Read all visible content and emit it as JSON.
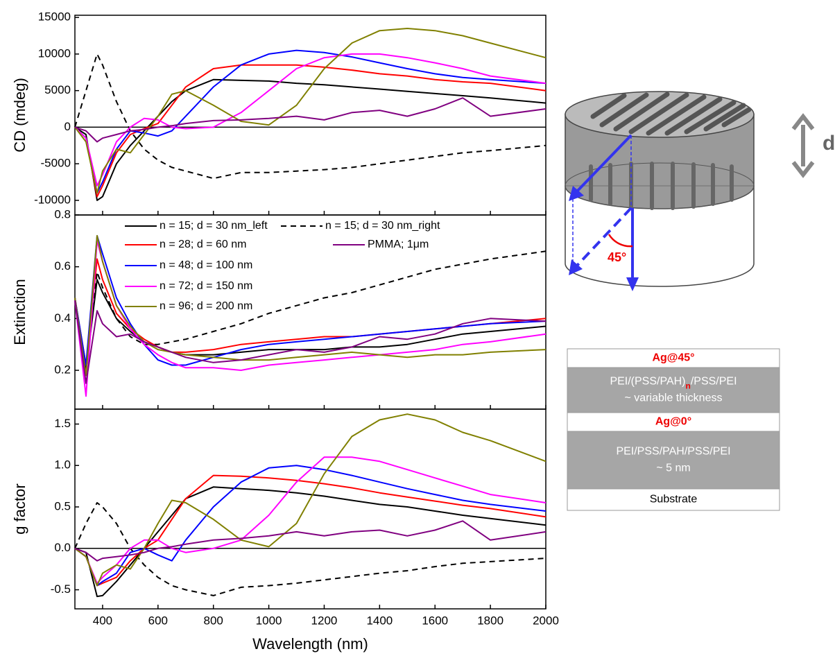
{
  "chart_data": [
    {
      "type": "line",
      "ylabel": "CD (mdeg)",
      "xlim": [
        300,
        2000
      ],
      "ylim": [
        -12000,
        15300
      ],
      "yticks": [
        -10000,
        -5000,
        0,
        5000,
        10000,
        15000
      ],
      "zero_line": true,
      "x": [
        300,
        340,
        380,
        400,
        450,
        500,
        550,
        600,
        650,
        700,
        800,
        900,
        1000,
        1100,
        1200,
        1300,
        1400,
        1500,
        1600,
        1700,
        1800,
        2000
      ],
      "series": [
        {
          "color": "#000000",
          "values": [
            0,
            -1000,
            -10000,
            -9500,
            -5000,
            -2500,
            -500,
            1500,
            3500,
            5000,
            6500,
            6400,
            6300,
            6000,
            5800,
            5500,
            5200,
            4900,
            4600,
            4300,
            4000,
            3300
          ]
        },
        {
          "color": "#000000",
          "dash": true,
          "values": [
            0,
            5000,
            10000,
            8500,
            3500,
            -500,
            -3000,
            -4500,
            -5500,
            -6000,
            -7000,
            -6200,
            -6200,
            -6000,
            -5800,
            -5500,
            -5000,
            -4500,
            -4000,
            -3500,
            -3200,
            -2500
          ]
        },
        {
          "color": "#ff0000",
          "values": [
            0,
            -1500,
            -9500,
            -8000,
            -3500,
            -1000,
            -200,
            500,
            3000,
            5500,
            8000,
            8500,
            8500,
            8500,
            8200,
            7800,
            7300,
            7000,
            6500,
            6200,
            6000,
            5000
          ]
        },
        {
          "color": "#0000ff",
          "values": [
            0,
            -1500,
            -9000,
            -7500,
            -3000,
            -500,
            -800,
            -1200,
            -500,
            1500,
            5500,
            8500,
            10000,
            10500,
            10200,
            9600,
            8800,
            8000,
            7300,
            6800,
            6500,
            6000
          ]
        },
        {
          "color": "#ff00ff",
          "values": [
            0,
            -1500,
            -8000,
            -6500,
            -2000,
            0,
            1200,
            1000,
            0,
            -200,
            0,
            2000,
            5000,
            8000,
            9500,
            10000,
            10000,
            9500,
            8800,
            8000,
            7000,
            6000
          ]
        },
        {
          "color": "#808000",
          "values": [
            0,
            -2000,
            -9000,
            -6000,
            -3000,
            -3500,
            -1000,
            1500,
            4500,
            5000,
            3000,
            800,
            300,
            3000,
            8000,
            11500,
            13200,
            13500,
            13200,
            12500,
            11500,
            9500
          ]
        },
        {
          "color": "#800080",
          "values": [
            0,
            -500,
            -2000,
            -1500,
            -1000,
            -500,
            -300,
            0,
            200,
            500,
            900,
            1000,
            1200,
            1500,
            1000,
            2000,
            2300,
            1500,
            2500,
            4000,
            1500,
            2500
          ]
        }
      ]
    },
    {
      "type": "line",
      "ylabel": "Extinction",
      "xlim": [
        300,
        2000
      ],
      "ylim": [
        0.05,
        0.8
      ],
      "yticks": [
        0.2,
        0.4,
        0.6,
        0.8
      ],
      "legend": true,
      "x": [
        300,
        340,
        380,
        400,
        450,
        500,
        550,
        600,
        650,
        700,
        800,
        900,
        1000,
        1100,
        1200,
        1300,
        1400,
        1500,
        1600,
        1700,
        1800,
        2000
      ],
      "series": [
        {
          "name": "n = 15; d = 30 nm_left",
          "color": "#000000",
          "values": [
            0.48,
            0.2,
            0.55,
            0.5,
            0.4,
            0.35,
            0.31,
            0.29,
            0.27,
            0.26,
            0.26,
            0.27,
            0.28,
            0.28,
            0.28,
            0.29,
            0.29,
            0.3,
            0.32,
            0.34,
            0.35,
            0.37
          ]
        },
        {
          "name": "n = 15; d = 30 nm_right",
          "color": "#000000",
          "dash": true,
          "values": [
            0.48,
            0.2,
            0.58,
            0.52,
            0.4,
            0.33,
            0.3,
            0.3,
            0.31,
            0.32,
            0.35,
            0.38,
            0.42,
            0.45,
            0.48,
            0.5,
            0.53,
            0.56,
            0.59,
            0.61,
            0.63,
            0.66
          ]
        },
        {
          "name": "n = 28; d = 60 nm",
          "color": "#ff0000",
          "values": [
            0.48,
            0.22,
            0.63,
            0.55,
            0.42,
            0.36,
            0.32,
            0.29,
            0.27,
            0.27,
            0.28,
            0.3,
            0.31,
            0.32,
            0.33,
            0.33,
            0.34,
            0.35,
            0.36,
            0.37,
            0.38,
            0.4
          ]
        },
        {
          "name": "n = 48; d = 100 nm",
          "color": "#0000ff",
          "values": [
            0.48,
            0.22,
            0.72,
            0.65,
            0.48,
            0.38,
            0.3,
            0.24,
            0.22,
            0.22,
            0.25,
            0.28,
            0.3,
            0.31,
            0.32,
            0.33,
            0.34,
            0.35,
            0.36,
            0.37,
            0.38,
            0.39
          ]
        },
        {
          "name": "n = 72; d = 150 nm",
          "color": "#ff00ff",
          "values": [
            0.47,
            0.1,
            0.7,
            0.62,
            0.45,
            0.36,
            0.3,
            0.26,
            0.23,
            0.21,
            0.21,
            0.2,
            0.22,
            0.23,
            0.24,
            0.25,
            0.26,
            0.27,
            0.28,
            0.3,
            0.31,
            0.34
          ]
        },
        {
          "name": "n = 96; d = 200 nm",
          "color": "#808000",
          "values": [
            0.48,
            0.18,
            0.72,
            0.62,
            0.45,
            0.37,
            0.31,
            0.28,
            0.27,
            0.26,
            0.25,
            0.24,
            0.24,
            0.25,
            0.26,
            0.27,
            0.26,
            0.25,
            0.26,
            0.26,
            0.27,
            0.28
          ]
        },
        {
          "name": "PMMA; 1μm",
          "color": "#800080",
          "values": [
            0.47,
            0.15,
            0.43,
            0.38,
            0.33,
            0.34,
            0.31,
            0.29,
            0.27,
            0.25,
            0.23,
            0.24,
            0.26,
            0.28,
            0.27,
            0.29,
            0.33,
            0.32,
            0.34,
            0.38,
            0.4,
            0.39
          ]
        }
      ]
    },
    {
      "type": "line",
      "ylabel": "g factor",
      "xlabel": "Wavelength (nm)",
      "xlim": [
        300,
        2000
      ],
      "ylim": [
        -0.73,
        1.68
      ],
      "zero_line": true,
      "yticks": [
        -0.5,
        {
          "value": 0,
          "label": "0.0"
        },
        0.5,
        {
          "value": 1,
          "label": "1.0"
        },
        1.5
      ],
      "xticks": [
        400,
        600,
        800,
        1000,
        1200,
        1400,
        1600,
        1800,
        2000
      ],
      "x": [
        300,
        340,
        380,
        400,
        450,
        500,
        550,
        600,
        650,
        700,
        800,
        900,
        1000,
        1100,
        1200,
        1300,
        1400,
        1500,
        1600,
        1700,
        1800,
        2000
      ],
      "series": [
        {
          "color": "#000000",
          "values": [
            0,
            -0.05,
            -0.58,
            -0.57,
            -0.4,
            -0.2,
            0,
            0.2,
            0.4,
            0.6,
            0.74,
            0.72,
            0.7,
            0.67,
            0.63,
            0.58,
            0.53,
            0.5,
            0.45,
            0.4,
            0.36,
            0.28
          ]
        },
        {
          "color": "#000000",
          "dash": true,
          "values": [
            0,
            0.3,
            0.55,
            0.5,
            0.3,
            0,
            -0.2,
            -0.35,
            -0.45,
            -0.5,
            -0.57,
            -0.47,
            -0.45,
            -0.42,
            -0.38,
            -0.34,
            -0.3,
            -0.27,
            -0.22,
            -0.18,
            -0.16,
            -0.12
          ]
        },
        {
          "color": "#ff0000",
          "values": [
            0,
            -0.1,
            -0.45,
            -0.42,
            -0.35,
            -0.15,
            0,
            0.1,
            0.35,
            0.6,
            0.88,
            0.87,
            0.85,
            0.82,
            0.78,
            0.73,
            0.67,
            0.62,
            0.57,
            0.52,
            0.48,
            0.38
          ]
        },
        {
          "color": "#0000ff",
          "values": [
            0,
            -0.1,
            -0.45,
            -0.4,
            -0.3,
            -0.05,
            0,
            -0.08,
            -0.15,
            0.1,
            0.5,
            0.8,
            0.97,
            1.0,
            0.95,
            0.88,
            0.8,
            0.72,
            0.65,
            0.58,
            0.53,
            0.45
          ]
        },
        {
          "color": "#ff00ff",
          "values": [
            0,
            -0.1,
            -0.42,
            -0.35,
            -0.2,
            0,
            0.1,
            0.1,
            0,
            -0.05,
            0,
            0.1,
            0.4,
            0.8,
            1.1,
            1.1,
            1.05,
            0.95,
            0.85,
            0.75,
            0.65,
            0.55
          ]
        },
        {
          "color": "#808000",
          "values": [
            0,
            -0.1,
            -0.45,
            -0.3,
            -0.2,
            -0.25,
            0,
            0.3,
            0.58,
            0.55,
            0.35,
            0.1,
            0.02,
            0.3,
            0.9,
            1.35,
            1.55,
            1.62,
            1.55,
            1.4,
            1.3,
            1.05
          ]
        },
        {
          "color": "#800080",
          "values": [
            0,
            -0.05,
            -0.15,
            -0.12,
            -0.1,
            -0.08,
            -0.05,
            0,
            0.02,
            0.05,
            0.1,
            0.12,
            0.15,
            0.2,
            0.15,
            0.2,
            0.22,
            0.15,
            0.22,
            0.33,
            0.1,
            0.2
          ]
        }
      ]
    }
  ],
  "diagram": {
    "thickness_label": "d",
    "angle_label": "45°"
  },
  "layer_table": {
    "rows": [
      {
        "lines": [
          [
            "Ag@45°"
          ]
        ]
      },
      {
        "lines": [
          [
            "PEI/(PSS/PAH)",
            "n",
            "/PSS/PEI"
          ],
          [
            "~ variable thickness"
          ]
        ]
      },
      {
        "lines": [
          [
            "Ag@0°"
          ]
        ]
      },
      {
        "lines": [
          [
            "PEI/PSS/PAH/PSS/PEI"
          ],
          [
            "~ 5 nm"
          ]
        ]
      },
      {
        "lines": [
          [
            "Substrate"
          ]
        ]
      }
    ]
  }
}
